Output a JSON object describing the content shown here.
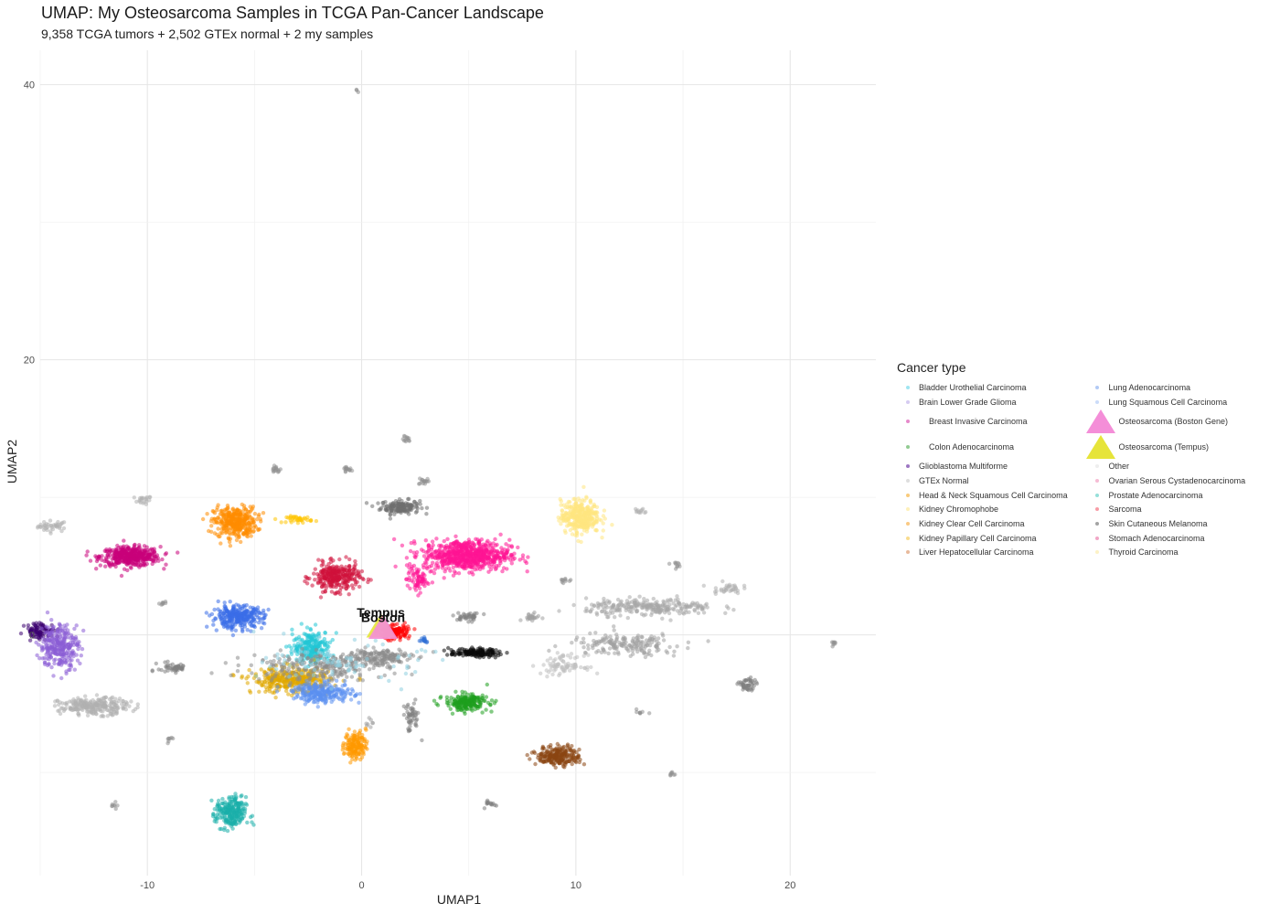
{
  "chart_data": {
    "type": "scatter",
    "title": "UMAP: My Osteosarcoma Samples in TCGA Pan-Cancer Landscape",
    "subtitle": "9,358 TCGA tumors + 2,502 GTEx normal + 2 my samples",
    "xlabel": "UMAP1",
    "ylabel": "UMAP2",
    "xlim": [
      -15,
      24
    ],
    "ylim": [
      -17.5,
      42.5
    ],
    "xticks": [
      -10,
      0,
      10,
      20
    ],
    "yticks": [
      0,
      20,
      40
    ],
    "grid": true,
    "legend": {
      "title": "Cancer type",
      "position": "right",
      "items": [
        {
          "label": "Bladder Urothelial Carcinoma",
          "color": "#5fd3e8"
        },
        {
          "label": "Brain Lower Grade Glioma",
          "color": "#b9a8e8"
        },
        {
          "label": "Breast Invasive Carcinoma",
          "color": "#d63ba6"
        },
        {
          "label": "Colon Adenocarcinoma",
          "color": "#49a84a"
        },
        {
          "label": "Glioblastoma Multiforme",
          "color": "#5a1a9a"
        },
        {
          "label": "GTEx Normal",
          "color": "#c8c8c8"
        },
        {
          "label": "Head & Neck Squamous Cell Carcinoma",
          "color": "#f5a623"
        },
        {
          "label": "Kidney Chromophobe",
          "color": "#fde68a"
        },
        {
          "label": "Kidney Clear Cell Carcinoma",
          "color": "#f7a531"
        },
        {
          "label": "Kidney Papillary Cell Carcinoma",
          "color": "#f5c542"
        },
        {
          "label": "Liver Hepatocellular Carcinoma",
          "color": "#d98c5a"
        },
        {
          "label": "Lung Adenocarcinoma",
          "color": "#7fa6ee"
        },
        {
          "label": "Lung Squamous Cell Carcinoma",
          "color": "#a9c4f5"
        },
        {
          "label": "Osteosarcoma (Boston Gene)",
          "color": "#f48ed8",
          "shape": "triangle"
        },
        {
          "label": "Osteosarcoma (Tempus)",
          "color": "#e6e43a",
          "shape": "triangle"
        },
        {
          "label": "Other",
          "color": "#e3e3e3"
        },
        {
          "label": "Ovarian Serous Cystadenocarcinoma",
          "color": "#f090b8"
        },
        {
          "label": "Prostate Adenocarcinoma",
          "color": "#4ec9c0"
        },
        {
          "label": "Sarcoma",
          "color": "#f25c6a"
        },
        {
          "label": "Skin Cutaneous Melanoma",
          "color": "#666666"
        },
        {
          "label": "Stomach Adenocarcinoma",
          "color": "#e86aa0"
        },
        {
          "label": "Thyroid Carcinoma",
          "color": "#fbe9a0"
        }
      ]
    },
    "clusters": [
      {
        "name": "Other",
        "color": "#8c8c8c",
        "x": -0.2,
        "y": 39.5,
        "sx": 0.1,
        "sy": 0.1,
        "n": 3
      },
      {
        "name": "GTEx Normal",
        "color": "#b0b0b0",
        "x": -14.4,
        "y": 7.9,
        "sx": 0.35,
        "sy": 0.2,
        "n": 40
      },
      {
        "name": "GTEx Normal",
        "color": "#b0b0b0",
        "x": -10.2,
        "y": 9.8,
        "sx": 0.2,
        "sy": 0.15,
        "n": 20
      },
      {
        "name": "GTEx Normal",
        "color": "#909090",
        "x": -4.0,
        "y": 12.0,
        "sx": 0.12,
        "sy": 0.12,
        "n": 15
      },
      {
        "name": "GTEx Normal",
        "color": "#909090",
        "x": -0.7,
        "y": 12.0,
        "sx": 0.12,
        "sy": 0.12,
        "n": 15
      },
      {
        "name": "GTEx Normal",
        "color": "#909090",
        "x": 2.1,
        "y": 14.2,
        "sx": 0.1,
        "sy": 0.12,
        "n": 12
      },
      {
        "name": "GTEx Normal",
        "color": "#909090",
        "x": 2.9,
        "y": 11.2,
        "sx": 0.12,
        "sy": 0.15,
        "n": 15
      },
      {
        "name": "Skin Cutaneous Melanoma",
        "color": "#707070",
        "x": 1.8,
        "y": 9.3,
        "sx": 0.45,
        "sy": 0.25,
        "n": 160
      },
      {
        "name": "Breast Invasive Carcinoma",
        "color": "#c8007a",
        "x": -10.8,
        "y": 5.7,
        "sx": 0.7,
        "sy": 0.35,
        "n": 420
      },
      {
        "name": "Head & Neck Squamous Cell Carcinoma",
        "color": "#ff8c00",
        "x": -5.9,
        "y": 8.2,
        "sx": 0.5,
        "sy": 0.55,
        "n": 360
      },
      {
        "name": "Kidney Chromophobe",
        "color": "#ffc400",
        "x": -2.9,
        "y": 8.4,
        "sx": 0.3,
        "sy": 0.12,
        "n": 40
      },
      {
        "name": "Sarcoma",
        "color": "#d0103a",
        "x": -1.2,
        "y": 4.2,
        "sx": 0.55,
        "sy": 0.5,
        "n": 300
      },
      {
        "name": "Ovarian Serous Cystadenocarcinoma",
        "color": "#ff1493",
        "x": 4.9,
        "y": 5.8,
        "sx": 1.0,
        "sy": 0.55,
        "n": 700
      },
      {
        "name": "Ovarian Serous Cystadenocarcinoma",
        "color": "#ff1493",
        "x": 2.6,
        "y": 4.0,
        "sx": 0.25,
        "sy": 0.45,
        "n": 70
      },
      {
        "name": "Thyroid Carcinoma",
        "color": "#ffe680",
        "x": 10.2,
        "y": 8.6,
        "sx": 0.45,
        "sy": 0.6,
        "n": 350
      },
      {
        "name": "GTEx Normal",
        "color": "#b0b0b0",
        "x": 13.0,
        "y": 9.0,
        "sx": 0.15,
        "sy": 0.12,
        "n": 12
      },
      {
        "name": "GTEx Normal",
        "color": "#909090",
        "x": 9.5,
        "y": 4.0,
        "sx": 0.12,
        "sy": 0.12,
        "n": 10
      },
      {
        "name": "GTEx Normal",
        "color": "#909090",
        "x": 14.6,
        "y": 5.1,
        "sx": 0.1,
        "sy": 0.1,
        "n": 10
      },
      {
        "name": "GTEx Normal",
        "color": "#b0b0b0",
        "x": 17.0,
        "y": 3.4,
        "sx": 0.35,
        "sy": 0.2,
        "n": 35
      },
      {
        "name": "GTEx Normal",
        "color": "#a8a8a8",
        "x": 13.5,
        "y": 2.0,
        "sx": 1.5,
        "sy": 0.3,
        "n": 260
      },
      {
        "name": "GTEx Normal",
        "color": "#a0a0a0",
        "x": 12.3,
        "y": -0.7,
        "sx": 1.3,
        "sy": 0.4,
        "n": 180
      },
      {
        "name": "GTEx Normal",
        "color": "#c0c0c0",
        "x": 9.4,
        "y": -2.2,
        "sx": 0.5,
        "sy": 0.35,
        "n": 80
      },
      {
        "name": "GTEx Normal",
        "color": "#808080",
        "x": 5.0,
        "y": 1.3,
        "sx": 0.3,
        "sy": 0.15,
        "n": 40
      },
      {
        "name": "GTEx Normal",
        "color": "#a0a0a0",
        "x": 7.9,
        "y": 1.3,
        "sx": 0.2,
        "sy": 0.12,
        "n": 25
      },
      {
        "name": "GTEx Normal",
        "color": "#909090",
        "x": 22.0,
        "y": -0.6,
        "sx": 0.1,
        "sy": 0.1,
        "n": 8
      },
      {
        "name": "GTEx Normal",
        "color": "#808080",
        "x": 18.0,
        "y": -3.7,
        "sx": 0.2,
        "sy": 0.3,
        "n": 50
      },
      {
        "name": "GTEx Normal",
        "color": "#808080",
        "x": 2.3,
        "y": -6.0,
        "sx": 0.2,
        "sy": 0.55,
        "n": 50
      },
      {
        "name": "GTEx Normal",
        "color": "#a0a0a0",
        "x": 0.4,
        "y": -6.4,
        "sx": 0.1,
        "sy": 0.2,
        "n": 8
      },
      {
        "name": "GTEx Normal",
        "color": "#909090",
        "x": 13.0,
        "y": -5.6,
        "sx": 0.1,
        "sy": 0.1,
        "n": 8
      },
      {
        "name": "GTEx Normal",
        "color": "#909090",
        "x": 14.5,
        "y": -10.1,
        "sx": 0.1,
        "sy": 0.1,
        "n": 8
      },
      {
        "name": "GTEx Normal",
        "color": "#808080",
        "x": 6.0,
        "y": -12.2,
        "sx": 0.12,
        "sy": 0.15,
        "n": 15
      },
      {
        "name": "GTEx Normal",
        "color": "#909090",
        "x": -9.2,
        "y": 2.2,
        "sx": 0.1,
        "sy": 0.1,
        "n": 8
      },
      {
        "name": "GTEx Normal",
        "color": "#808080",
        "x": -8.8,
        "y": -2.4,
        "sx": 0.35,
        "sy": 0.2,
        "n": 50
      },
      {
        "name": "GTEx Normal",
        "color": "#909090",
        "x": -9.0,
        "y": -7.6,
        "sx": 0.1,
        "sy": 0.1,
        "n": 8
      },
      {
        "name": "GTEx Normal",
        "color": "#909090",
        "x": -11.5,
        "y": -12.4,
        "sx": 0.1,
        "sy": 0.1,
        "n": 8
      },
      {
        "name": "GTEx Normal",
        "color": "#b0b0b0",
        "x": -12.5,
        "y": -5.2,
        "sx": 0.8,
        "sy": 0.3,
        "n": 260
      },
      {
        "name": "Glioblastoma Multiforme",
        "color": "#3a0070",
        "x": -15.0,
        "y": 0.3,
        "sx": 0.35,
        "sy": 0.3,
        "n": 90
      },
      {
        "name": "Brain Lower Grade Glioma",
        "color": "#8a5cd6",
        "x": -14.1,
        "y": -0.8,
        "sx": 0.45,
        "sy": 0.8,
        "n": 280
      },
      {
        "name": "Lung Adenocarcinoma",
        "color": "#3a6ee8",
        "x": -5.8,
        "y": 1.3,
        "sx": 0.6,
        "sy": 0.4,
        "n": 300
      },
      {
        "name": "Bladder Urothelial Carcinoma",
        "color": "#22c6d6",
        "x": -2.3,
        "y": -0.9,
        "sx": 0.45,
        "sy": 0.6,
        "n": 240
      },
      {
        "name": "Kidney Papillary Cell Carcinoma",
        "color": "#e0a800",
        "x": -3.3,
        "y": -3.3,
        "sx": 0.9,
        "sy": 0.45,
        "n": 380
      },
      {
        "name": "Lung Squamous Cell Carcinoma",
        "color": "#5b8ff0",
        "x": -1.8,
        "y": -4.2,
        "sx": 0.7,
        "sy": 0.35,
        "n": 260
      },
      {
        "name": "GTEx Normal",
        "color": "#8c8c8c",
        "x": -2.0,
        "y": -2.3,
        "sx": 1.6,
        "sy": 0.5,
        "n": 240
      },
      {
        "name": "GTEx Normal",
        "color": "#8c8c8c",
        "x": 0.7,
        "y": -1.6,
        "sx": 0.8,
        "sy": 0.3,
        "n": 160
      },
      {
        "name": "Prostate Adenocarcinoma",
        "color": "#8fd0e0",
        "x": -0.8,
        "y": -2.0,
        "sx": 1.8,
        "sy": 0.7,
        "n": 90
      },
      {
        "name": "Sarcoma",
        "color": "#ff0000",
        "x": 1.5,
        "y": 0.2,
        "sx": 0.35,
        "sy": 0.25,
        "n": 140
      },
      {
        "name": "Sarcoma",
        "color": "#2f6fd6",
        "x": 2.9,
        "y": -0.4,
        "sx": 0.12,
        "sy": 0.1,
        "n": 15
      },
      {
        "name": "Colon Adenocarcinoma",
        "color": "#1e9e1e",
        "x": 4.9,
        "y": -4.9,
        "sx": 0.5,
        "sy": 0.3,
        "n": 200
      },
      {
        "name": "Skin Cutaneous Melanoma",
        "color": "#0a0a0a",
        "x": 5.3,
        "y": -1.3,
        "sx": 0.6,
        "sy": 0.15,
        "n": 140
      },
      {
        "name": "Kidney Clear Cell Carcinoma",
        "color": "#ff9900",
        "x": -0.3,
        "y": -8.0,
        "sx": 0.25,
        "sy": 0.5,
        "n": 160
      },
      {
        "name": "Liver Hepatocellular Carcinoma",
        "color": "#8b4513",
        "x": 9.2,
        "y": -8.8,
        "sx": 0.5,
        "sy": 0.35,
        "n": 230
      },
      {
        "name": "Prostate Adenocarcinoma",
        "color": "#1aaeaa",
        "x": -6.1,
        "y": -13.0,
        "sx": 0.35,
        "sy": 0.6,
        "n": 230
      }
    ],
    "highlight_points": [
      {
        "label": "Tempus",
        "series": "Osteosarcoma (Tempus)",
        "x": 0.9,
        "y": 0.5,
        "color": "#e6e43a"
      },
      {
        "label": "Boston",
        "series": "Osteosarcoma (Boston Gene)",
        "x": 1.0,
        "y": 0.4,
        "color": "#f48ed8"
      }
    ]
  }
}
